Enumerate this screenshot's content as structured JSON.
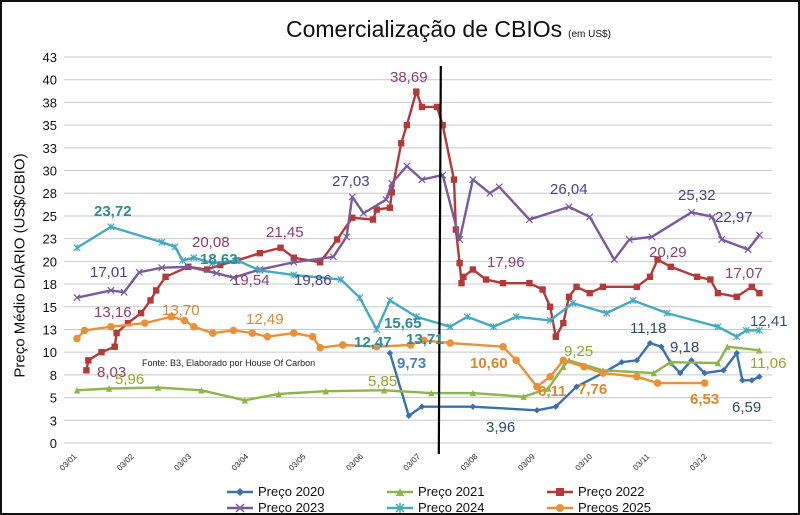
{
  "chart_data": {
    "type": "line",
    "title": "Comercialização de CBIOs",
    "title_unit": "(em US$)",
    "ylabel": "Preço Médio DIÁRIO (US$/CBIO)",
    "xlabel": "",
    "ylim": [
      0,
      42.5
    ],
    "ytick_values": [
      0,
      2.5,
      5,
      7.5,
      10,
      12.5,
      15,
      17.5,
      20,
      22.5,
      25,
      27.5,
      30,
      32.5,
      35,
      37.5,
      40,
      42.5
    ],
    "ytick_labels": [
      "0",
      "3",
      "5",
      "8",
      "10",
      "13",
      "15",
      "18",
      "20",
      "23",
      "25",
      "28",
      "30",
      "33",
      "35",
      "38",
      "40",
      "43"
    ],
    "xtick_labels": [
      "03/01",
      "03/02",
      "03/03",
      "03/04",
      "03/05",
      "03/06",
      "03/07",
      "03/08",
      "03/09",
      "03/10",
      "03/11",
      "03/12"
    ],
    "grid": true,
    "legend_position": "bottom",
    "source_note": "Fonte: B3, Elaborado por House Of Carbon",
    "vertical_marker_date": "15/07",
    "series": [
      {
        "name": "Preço 2020",
        "color": "#3a6fb0",
        "marker": "diamond",
        "points": [
          [
            "18/06",
            9.9
          ],
          [
            "28/06",
            3.0
          ],
          [
            "05/07",
            4.0
          ],
          [
            "01/08",
            4.0
          ],
          [
            "04/09",
            3.6
          ],
          [
            "14/09",
            4.0
          ],
          [
            "25/09",
            6.2
          ],
          [
            "09/10",
            7.7
          ],
          [
            "19/10",
            8.9
          ],
          [
            "27/10",
            9.1
          ],
          [
            "03/11",
            11.0
          ],
          [
            "09/11",
            10.6
          ],
          [
            "14/11",
            8.8
          ],
          [
            "19/11",
            7.7
          ],
          [
            "25/11",
            9.1
          ],
          [
            "02/12",
            7.7
          ],
          [
            "12/12",
            8.0
          ],
          [
            "19/12",
            9.9
          ],
          [
            "22/12",
            6.9
          ],
          [
            "27/12",
            6.9
          ],
          [
            "31/12",
            7.3
          ]
        ]
      },
      {
        "name": "Preço 2021",
        "color": "#8db548",
        "marker": "triangle",
        "points": [
          [
            "03/01",
            5.8
          ],
          [
            "20/01",
            6.0
          ],
          [
            "15/02",
            6.1
          ],
          [
            "10/03",
            5.8
          ],
          [
            "02/04",
            4.7
          ],
          [
            "20/04",
            5.4
          ],
          [
            "15/05",
            5.7
          ],
          [
            "15/06",
            5.8
          ],
          [
            "10/07",
            5.5
          ],
          [
            "01/08",
            5.5
          ],
          [
            "28/08",
            5.1
          ],
          [
            "10/09",
            6.0
          ],
          [
            "18/09",
            8.4
          ],
          [
            "21/09",
            9.1
          ],
          [
            "09/10",
            8.0
          ],
          [
            "05/11",
            7.7
          ],
          [
            "14/11",
            8.9
          ],
          [
            "09/12",
            8.8
          ],
          [
            "14/12",
            10.6
          ],
          [
            "31/12",
            10.2
          ]
        ]
      },
      {
        "name": "Preço 2022",
        "color": "#b43a3a",
        "marker": "square",
        "points": [
          [
            "08/01",
            8.0
          ],
          [
            "09/01",
            9.1
          ],
          [
            "16/01",
            10.0
          ],
          [
            "23/01",
            10.6
          ],
          [
            "24/01",
            12.1
          ],
          [
            "30/01",
            13.2
          ],
          [
            "06/02",
            14.3
          ],
          [
            "11/02",
            15.7
          ],
          [
            "14/02",
            16.8
          ],
          [
            "19/02",
            18.3
          ],
          [
            "03/03",
            19.4
          ],
          [
            "13/03",
            19.1
          ],
          [
            "20/03",
            19.6
          ],
          [
            "29/03",
            20.1
          ],
          [
            "10/04",
            20.9
          ],
          [
            "21/04",
            21.5
          ],
          [
            "28/04",
            20.4
          ],
          [
            "12/05",
            19.9
          ],
          [
            "21/05",
            22.4
          ],
          [
            "29/05",
            24.8
          ],
          [
            "09/06",
            24.6
          ],
          [
            "11/06",
            25.7
          ],
          [
            "18/06",
            25.9
          ],
          [
            "19/06",
            27.6
          ],
          [
            "24/06",
            33.0
          ],
          [
            "27/06",
            35.0
          ],
          [
            "02/07",
            38.69
          ],
          [
            "05/07",
            37.0
          ],
          [
            "13/07",
            37.0
          ],
          [
            "16/07",
            35.0
          ],
          [
            "22/07",
            29.0
          ],
          [
            "23/07",
            23.5
          ],
          [
            "25/07",
            19.8
          ],
          [
            "26/07",
            17.6
          ],
          [
            "27/07",
            18.3
          ],
          [
            "01/08",
            19.1
          ],
          [
            "08/08",
            18.0
          ],
          [
            "17/08",
            17.6
          ],
          [
            "31/08",
            17.6
          ],
          [
            "07/09",
            16.9
          ],
          [
            "11/09",
            15.0
          ],
          [
            "14/09",
            11.7
          ],
          [
            "18/09",
            13.2
          ],
          [
            "21/09",
            16.1
          ],
          [
            "25/09",
            17.2
          ],
          [
            "02/10",
            16.5
          ],
          [
            "09/10",
            17.2
          ],
          [
            "27/10",
            17.2
          ],
          [
            "03/11",
            18.3
          ],
          [
            "07/11",
            20.2
          ],
          [
            "14/11",
            19.4
          ],
          [
            "28/11",
            18.3
          ],
          [
            "05/12",
            18.0
          ],
          [
            "09/12",
            16.5
          ],
          [
            "19/12",
            16.1
          ],
          [
            "27/12",
            17.2
          ],
          [
            "31/12",
            16.5
          ]
        ]
      },
      {
        "name": "Preço 2023",
        "color": "#7a5a9c",
        "marker": "x",
        "points": [
          [
            "03/01",
            16.0
          ],
          [
            "21/01",
            16.8
          ],
          [
            "28/01",
            16.6
          ],
          [
            "05/02",
            18.8
          ],
          [
            "17/02",
            19.3
          ],
          [
            "03/03",
            19.4
          ],
          [
            "18/03",
            18.7
          ],
          [
            "27/03",
            18.2
          ],
          [
            "10/04",
            19.1
          ],
          [
            "28/04",
            19.9
          ],
          [
            "19/05",
            20.5
          ],
          [
            "26/05",
            22.7
          ],
          [
            "29/05",
            27.1
          ],
          [
            "04/06",
            25.3
          ],
          [
            "16/06",
            26.8
          ],
          [
            "19/06",
            28.6
          ],
          [
            "27/06",
            30.5
          ],
          [
            "05/07",
            29.0
          ],
          [
            "16/07",
            29.5
          ],
          [
            "25/07",
            22.4
          ],
          [
            "01/08",
            29.0
          ],
          [
            "10/08",
            27.5
          ],
          [
            "15/08",
            28.2
          ],
          [
            "31/08",
            24.6
          ],
          [
            "21/09",
            26.0
          ],
          [
            "02/10",
            24.9
          ],
          [
            "15/10",
            20.2
          ],
          [
            "23/10",
            22.4
          ],
          [
            "04/11",
            22.7
          ],
          [
            "25/11",
            25.4
          ],
          [
            "06/12",
            24.9
          ],
          [
            "11/12",
            22.4
          ],
          [
            "25/12",
            21.3
          ],
          [
            "31/12",
            22.9
          ]
        ]
      },
      {
        "name": "Preço 2024",
        "color": "#45a9c0",
        "marker": "asterisk",
        "points": [
          [
            "03/01",
            21.5
          ],
          [
            "21/01",
            23.8
          ],
          [
            "17/02",
            22.1
          ],
          [
            "24/02",
            21.6
          ],
          [
            "28/02",
            20.1
          ],
          [
            "06/03",
            20.4
          ],
          [
            "16/03",
            19.8
          ],
          [
            "29/03",
            20.1
          ],
          [
            "10/04",
            19.0
          ],
          [
            "28/04",
            18.5
          ],
          [
            "23/05",
            18.0
          ],
          [
            "02/06",
            16.0
          ],
          [
            "11/06",
            12.5
          ],
          [
            "18/06",
            15.7
          ],
          [
            "02/07",
            13.9
          ],
          [
            "20/07",
            12.8
          ],
          [
            "29/07",
            13.9
          ],
          [
            "12/08",
            12.8
          ],
          [
            "24/08",
            13.9
          ],
          [
            "11/09",
            13.5
          ],
          [
            "23/09",
            15.4
          ],
          [
            "11/10",
            14.3
          ],
          [
            "25/10",
            15.7
          ],
          [
            "12/11",
            14.3
          ],
          [
            "09/12",
            12.8
          ],
          [
            "19/12",
            11.7
          ],
          [
            "24/12",
            12.4
          ],
          [
            "31/12",
            12.4
          ]
        ]
      },
      {
        "name": "Preços 2025",
        "color": "#e8913a",
        "marker": "circle",
        "points": [
          [
            "03/01",
            11.5
          ],
          [
            "07/01",
            12.4
          ],
          [
            "21/01",
            12.8
          ],
          [
            "08/02",
            13.2
          ],
          [
            "22/02",
            13.9
          ],
          [
            "01/03",
            13.5
          ],
          [
            "06/03",
            12.8
          ],
          [
            "16/03",
            12.1
          ],
          [
            "27/03",
            12.4
          ],
          [
            "06/04",
            12.1
          ],
          [
            "14/04",
            11.7
          ],
          [
            "28/04",
            12.1
          ],
          [
            "08/05",
            11.7
          ],
          [
            "12/05",
            10.5
          ],
          [
            "24/05",
            10.8
          ],
          [
            "11/06",
            10.6
          ],
          [
            "29/06",
            10.8
          ],
          [
            "06/07",
            11.3
          ],
          [
            "20/07",
            11.0
          ],
          [
            "17/08",
            10.6
          ],
          [
            "24/08",
            9.1
          ],
          [
            "04/09",
            6.2
          ],
          [
            "11/09",
            7.3
          ],
          [
            "18/09",
            9.1
          ],
          [
            "29/09",
            8.4
          ],
          [
            "09/10",
            7.7
          ],
          [
            "27/10",
            7.3
          ],
          [
            "07/11",
            6.6
          ],
          [
            "02/12",
            6.6
          ]
        ]
      }
    ],
    "annotations": [
      {
        "text": "38,69",
        "color": "#8b3f74"
      },
      {
        "text": "27,03",
        "color": "#4b3f87"
      },
      {
        "text": "26,04",
        "color": "#4b3f87"
      },
      {
        "text": "25,32",
        "color": "#4b3f87"
      },
      {
        "text": "22,97",
        "color": "#4b3f87"
      },
      {
        "text": "23,72",
        "color": "#2e8b9a"
      },
      {
        "text": "20,08",
        "color": "#8b3f74"
      },
      {
        "text": "21,45",
        "color": "#8b3f74"
      },
      {
        "text": "17,01",
        "color": "#4b3f87"
      },
      {
        "text": "18,63",
        "color": "#2e8b9a"
      },
      {
        "text": "19,54",
        "color": "#8b3f74"
      },
      {
        "text": "19,86",
        "color": "#4b3f87"
      },
      {
        "text": "20,29",
        "color": "#8b3f74"
      },
      {
        "text": "17,96",
        "color": "#8b3f74"
      },
      {
        "text": "17,07",
        "color": "#8b3f74"
      },
      {
        "text": "13,16",
        "color": "#8b3f74"
      },
      {
        "text": "13,70",
        "color": "#e2852a"
      },
      {
        "text": "12,49",
        "color": "#e2852a"
      },
      {
        "text": "15,65",
        "color": "#2e8b9a"
      },
      {
        "text": "12,41",
        "color": "#2e5a7a"
      },
      {
        "text": "12,47",
        "color": "#2e8b9a"
      },
      {
        "text": "13,71",
        "color": "#2e8b9a"
      },
      {
        "text": "11,18",
        "color": "#2e4a6a"
      },
      {
        "text": "9,73",
        "color": "#4a7fc0"
      },
      {
        "text": "10,60",
        "color": "#e2852a"
      },
      {
        "text": "9,25",
        "color": "#9aa22a"
      },
      {
        "text": "9,18",
        "color": "#2e4a6a"
      },
      {
        "text": "11,06",
        "color": "#9aa22a"
      },
      {
        "text": "8,03",
        "color": "#8b3f74"
      },
      {
        "text": "5,96",
        "color": "#9aa22a"
      },
      {
        "text": "5,85",
        "color": "#9aa22a"
      },
      {
        "text": "6,11",
        "color": "#e2852a"
      },
      {
        "text": "7,76",
        "color": "#e2852a"
      },
      {
        "text": "6,53",
        "color": "#e2852a"
      },
      {
        "text": "6,59",
        "color": "#2e4a6a"
      },
      {
        "text": "3,96",
        "color": "#2e4a6a"
      }
    ]
  }
}
